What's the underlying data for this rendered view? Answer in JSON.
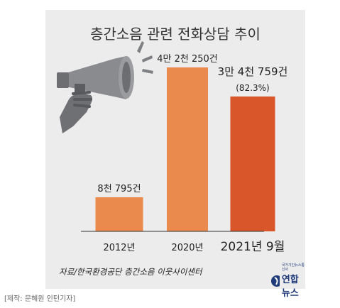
{
  "title": "층간소음 관련 전화상담 추이",
  "source": "자료/한국환경공단 층간소음 이웃사이센터",
  "logo": {
    "text": "연합뉴스",
    "tagline": "국가기간뉴스통신사"
  },
  "credit": "[제작: 문혜원 인턴기자]",
  "colors": {
    "background": "#ececec",
    "bar_normal": "#ea8a4d",
    "bar_highlight": "#d9552a",
    "text": "#333333",
    "megaphone": "#7f8083"
  },
  "icons": [
    "megaphone-icon",
    "hand-icon"
  ],
  "chart_data": {
    "type": "bar",
    "title": "층간소음 관련 전화상담 추이",
    "categories": [
      "2012년",
      "2020년",
      "2021년 9월"
    ],
    "values": [
      8795,
      42250,
      34759
    ],
    "value_labels": [
      "8천 795건",
      "4만 2천 250건",
      "3만 4천 759건"
    ],
    "annotation": "(82.3%)",
    "highlight_index": 2,
    "ylim": [
      0,
      42250
    ],
    "grid": false,
    "xlabel": "",
    "ylabel": ""
  }
}
